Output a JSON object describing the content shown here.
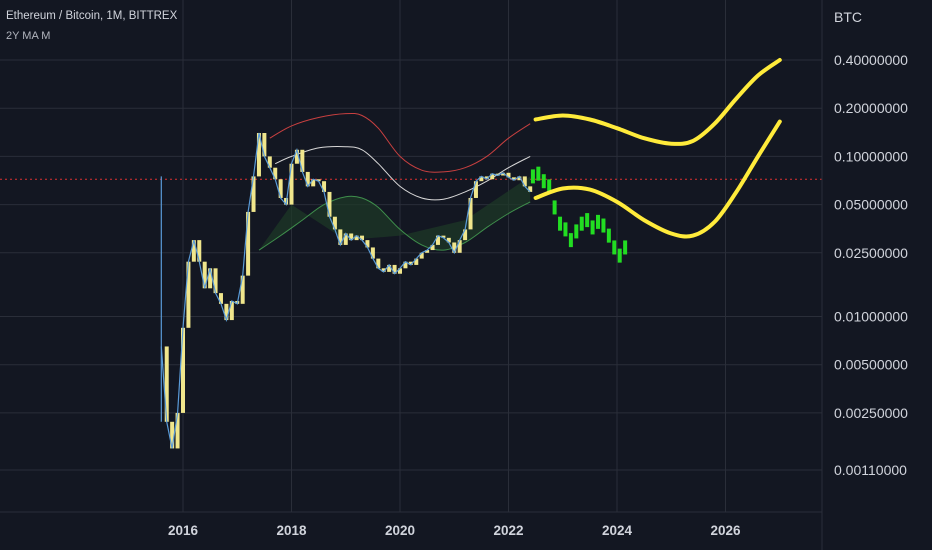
{
  "header": {
    "title": "Ethereum / Bitcoin, 1M, BITTREX",
    "indicator": "2Y MA M",
    "currency": "BTC"
  },
  "colors": {
    "background": "#131722",
    "grid": "#2a2e39",
    "price_line": "#5a9bd8",
    "candles": "#f0e68c",
    "projection_candles": "#22dd22",
    "projection_curves": "#ffeb3b",
    "upper_band": "#c94040",
    "mid_band": "#d8d8d8",
    "lower_band_fill": "#1e3b26",
    "current_price_line": "#e03030"
  },
  "chart_data": {
    "type": "line",
    "title": "Ethereum / Bitcoin, 1M, BITTREX",
    "xlabel": "",
    "ylabel": "BTC",
    "log_scale": true,
    "x_ticks": [
      "2016",
      "2018",
      "2020",
      "2022",
      "2024",
      "2026"
    ],
    "y_ticks": [
      "0.40000000",
      "0.20000000",
      "0.10000000",
      "0.05000000",
      "0.02500000",
      "0.01000000",
      "0.00500000",
      "0.00250000",
      "0.00110000"
    ],
    "y_tick_values": [
      0.4,
      0.2,
      0.1,
      0.05,
      0.025,
      0.01,
      0.005,
      0.0025,
      0.0011
    ],
    "xlim": [
      2014.5,
      2028.5
    ],
    "ylim": [
      0.0008,
      0.6
    ],
    "grid": true,
    "current_price": 0.072,
    "series": [
      {
        "name": "",
        "style": "price",
        "x": [
          2015.6,
          2015.7,
          2015.8,
          2015.9,
          2016.0,
          2016.1,
          2016.2,
          2016.3,
          2016.4,
          2016.5,
          2016.6,
          2016.7,
          2016.8,
          2016.9,
          2017.0,
          2017.1,
          2017.2,
          2017.3,
          2017.4,
          2017.5,
          2017.6,
          2017.7,
          2017.8,
          2017.9,
          2018.0,
          2018.1,
          2018.2,
          2018.3,
          2018.4,
          2018.5,
          2018.6,
          2018.7,
          2018.8,
          2018.9,
          2019.0,
          2019.1,
          2019.2,
          2019.3,
          2019.4,
          2019.5,
          2019.6,
          2019.7,
          2019.8,
          2019.9,
          2020.0,
          2020.1,
          2020.2,
          2020.3,
          2020.4,
          2020.5,
          2020.6,
          2020.7,
          2020.8,
          2020.9,
          2021.0,
          2021.1,
          2021.2,
          2021.3,
          2021.4,
          2021.5,
          2021.6,
          2021.7,
          2021.8,
          2021.9,
          2022.0,
          2022.1,
          2022.2,
          2022.3,
          2022.4
        ],
        "values": [
          0.0065,
          0.0022,
          0.0015,
          0.0025,
          0.0085,
          0.022,
          0.03,
          0.022,
          0.015,
          0.02,
          0.014,
          0.012,
          0.0095,
          0.0125,
          0.012,
          0.018,
          0.045,
          0.075,
          0.14,
          0.1,
          0.085,
          0.072,
          0.055,
          0.05,
          0.09,
          0.11,
          0.08,
          0.065,
          0.072,
          0.07,
          0.06,
          0.042,
          0.035,
          0.028,
          0.033,
          0.03,
          0.032,
          0.03,
          0.027,
          0.023,
          0.02,
          0.019,
          0.021,
          0.0185,
          0.02,
          0.022,
          0.021,
          0.023,
          0.025,
          0.026,
          0.028,
          0.032,
          0.031,
          0.029,
          0.025,
          0.03,
          0.035,
          0.055,
          0.07,
          0.075,
          0.072,
          0.078,
          0.076,
          0.079,
          0.074,
          0.071,
          0.075,
          0.065,
          0.06
        ]
      },
      {
        "name": "",
        "style": "upper_band",
        "x": [
          2017.6,
          2018.0,
          2018.5,
          2019.0,
          2019.3,
          2019.6,
          2020.0,
          2020.4,
          2020.8,
          2021.2,
          2021.6,
          2022.0,
          2022.4
        ],
        "values": [
          0.13,
          0.155,
          0.175,
          0.185,
          0.18,
          0.15,
          0.1,
          0.082,
          0.08,
          0.085,
          0.1,
          0.13,
          0.16
        ]
      },
      {
        "name": "",
        "style": "mid_band",
        "x": [
          2017.7,
          2018.0,
          2018.5,
          2019.0,
          2019.3,
          2019.6,
          2020.0,
          2020.4,
          2020.8,
          2021.2,
          2021.6,
          2022.0,
          2022.4
        ],
        "values": [
          0.09,
          0.1,
          0.113,
          0.115,
          0.11,
          0.09,
          0.065,
          0.055,
          0.054,
          0.06,
          0.07,
          0.085,
          0.1
        ]
      },
      {
        "name": "",
        "style": "lower_band",
        "x": [
          2017.4,
          2017.8,
          2018.2,
          2018.6,
          2019.0,
          2019.3,
          2019.6,
          2020.0,
          2020.4,
          2020.8,
          2021.2,
          2021.6,
          2022.0,
          2022.4
        ],
        "values": [
          0.026,
          0.032,
          0.04,
          0.05,
          0.056,
          0.055,
          0.048,
          0.035,
          0.028,
          0.026,
          0.029,
          0.036,
          0.044,
          0.052
        ]
      },
      {
        "name": "",
        "style": "projection_upper",
        "x": [
          2022.5,
          2023.0,
          2023.5,
          2024.0,
          2024.5,
          2025.0,
          2025.4,
          2025.8,
          2026.2,
          2026.6,
          2027.0
        ],
        "values": [
          0.17,
          0.18,
          0.17,
          0.15,
          0.13,
          0.12,
          0.125,
          0.16,
          0.23,
          0.32,
          0.4
        ]
      },
      {
        "name": "",
        "style": "projection_lower",
        "x": [
          2022.5,
          2023.0,
          2023.5,
          2024.0,
          2024.5,
          2025.0,
          2025.4,
          2025.8,
          2026.2,
          2026.6,
          2027.0
        ],
        "values": [
          0.055,
          0.063,
          0.062,
          0.052,
          0.04,
          0.033,
          0.032,
          0.039,
          0.06,
          0.1,
          0.165
        ]
      },
      {
        "name": "",
        "style": "projection_candles",
        "x": [
          2022.45,
          2022.55,
          2022.65,
          2022.75,
          2022.85,
          2022.95,
          2023.05,
          2023.15,
          2023.25,
          2023.35,
          2023.45,
          2023.55,
          2023.65,
          2023.75,
          2023.85,
          2023.95,
          2024.05,
          2024.15
        ],
        "values": [
          0.075,
          0.078,
          0.07,
          0.065,
          0.048,
          0.038,
          0.035,
          0.03,
          0.034,
          0.038,
          0.04,
          0.036,
          0.039,
          0.037,
          0.032,
          0.027,
          0.024,
          0.027
        ]
      }
    ]
  }
}
